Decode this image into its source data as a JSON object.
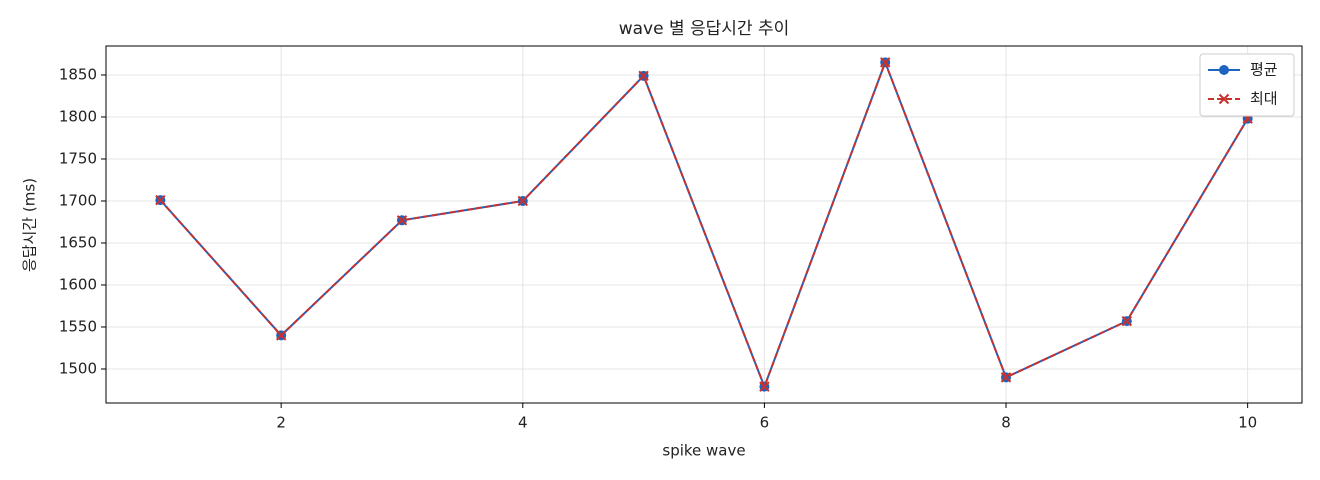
{
  "chart_data": {
    "type": "line",
    "title": "wave 별 응답시간 추이",
    "x_label": "spike wave",
    "y_label": "응답시간 (ms)",
    "x": [
      1,
      2,
      3,
      4,
      5,
      6,
      7,
      8,
      9,
      10
    ],
    "series": [
      {
        "name": "평균",
        "color": "#1f63c0",
        "marker": "circle",
        "dash": false,
        "values": [
          1701,
          1540,
          1677,
          1700,
          1849,
          1479,
          1865,
          1490,
          1557,
          1798
        ]
      },
      {
        "name": "최대",
        "color": "#c8322e",
        "marker": "x",
        "dash": true,
        "values": [
          1701,
          1540,
          1677,
          1700,
          1849,
          1479,
          1865,
          1490,
          1557,
          1798
        ]
      }
    ],
    "xlim": [
      0.55,
      10.45
    ],
    "xticks": [
      2,
      4,
      6,
      8,
      10
    ],
    "ylim": [
      1459.5,
      1884.5
    ],
    "yticks": [
      1500,
      1550,
      1600,
      1650,
      1700,
      1750,
      1800,
      1850
    ],
    "grid": true,
    "legend": "upper right"
  }
}
